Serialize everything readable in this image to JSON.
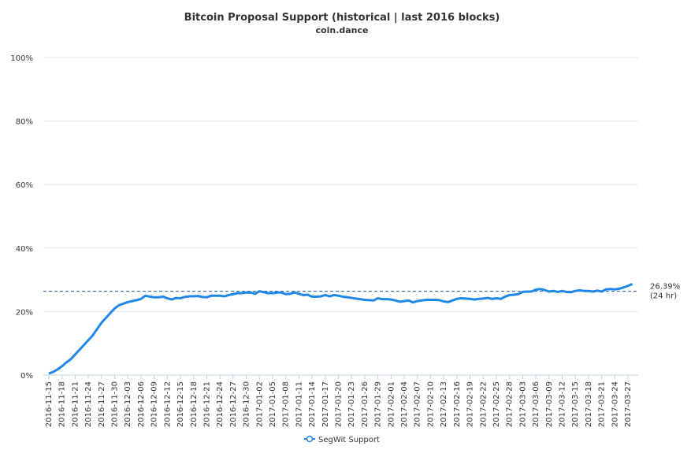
{
  "chart_data": {
    "type": "line",
    "title": "Bitcoin Proposal Support (historical | last 2016 blocks)",
    "subtitle": "coin.dance",
    "categories": [
      "2016-11-15",
      null,
      null,
      "2016-11-18",
      null,
      null,
      "2016-11-21",
      null,
      null,
      "2016-11-24",
      null,
      null,
      "2016-11-27",
      null,
      null,
      "2016-11-30",
      null,
      null,
      "2016-12-03",
      null,
      null,
      "2016-12-06",
      null,
      null,
      "2016-12-09",
      null,
      null,
      "2016-12-12",
      null,
      null,
      "2016-12-15",
      null,
      null,
      "2016-12-18",
      null,
      null,
      "2016-12-21",
      null,
      null,
      "2016-12-24",
      null,
      null,
      "2016-12-27",
      null,
      null,
      "2016-12-30",
      null,
      null,
      "2017-01-02",
      null,
      null,
      "2017-01-05",
      null,
      null,
      "2017-01-08",
      null,
      null,
      "2017-01-11",
      null,
      null,
      "2017-01-14",
      null,
      null,
      "2017-01-17",
      null,
      null,
      "2017-01-20",
      null,
      null,
      "2017-01-23",
      null,
      null,
      "2017-01-26",
      null,
      null,
      "2017-01-29",
      null,
      null,
      "2017-02-01",
      null,
      null,
      "2017-02-04",
      null,
      null,
      "2017-02-07",
      null,
      null,
      "2017-02-10",
      null,
      null,
      "2017-02-13",
      null,
      null,
      "2017-02-16",
      null,
      null,
      "2017-02-19",
      null,
      null,
      "2017-02-22",
      null,
      null,
      "2017-02-25",
      null,
      null,
      "2017-02-28",
      null,
      null,
      "2017-03-03",
      null,
      null,
      "2017-03-06",
      null,
      null,
      "2017-03-09",
      null,
      null,
      "2017-03-12",
      null,
      null,
      "2017-03-15",
      null,
      null,
      "2017-03-18",
      null,
      null,
      "2017-03-21",
      null,
      null,
      "2017-03-24",
      null,
      null,
      "2017-03-27",
      null
    ],
    "series": [
      {
        "name": "SegWit Support",
        "color": "#1f87e6",
        "values": [
          0.5,
          1,
          1.8,
          2.8,
          4,
          5,
          6.5,
          8,
          9.5,
          11,
          12.5,
          14.5,
          16.5,
          18,
          19.5,
          21,
          22,
          22.5,
          23,
          23.3,
          23.6,
          24,
          25,
          24.7,
          24.5,
          24.5,
          24.7,
          24.2,
          23.8,
          24.3,
          24.2,
          24.6,
          24.8,
          24.8,
          24.9,
          24.6,
          24.5,
          25,
          25,
          25,
          24.8,
          25.2,
          25.5,
          25.8,
          25.8,
          26,
          26,
          25.6,
          26.4,
          26.1,
          25.8,
          25.8,
          26,
          26,
          25.5,
          25.6,
          26,
          25.6,
          25.2,
          25.3,
          24.7,
          24.7,
          24.8,
          25.2,
          24.8,
          25.2,
          25,
          24.7,
          24.5,
          24.3,
          24.1,
          23.9,
          23.7,
          23.6,
          23.5,
          24.2,
          23.9,
          23.9,
          23.8,
          23.5,
          23.1,
          23.3,
          23.5,
          22.9,
          23.3,
          23.5,
          23.7,
          23.7,
          23.7,
          23.6,
          23.2,
          23,
          23.5,
          24,
          24.2,
          24.1,
          24,
          23.8,
          24,
          24.1,
          24.3,
          24,
          24.2,
          24,
          24.7,
          25.2,
          25.3,
          25.5,
          26.2,
          26.3,
          26.3,
          26.9,
          27.1,
          26.8,
          26.3,
          26.5,
          26.2,
          26.5,
          26.2,
          26.1,
          26.5,
          26.7,
          26.5,
          26.5,
          26.3,
          26.6,
          26.3,
          27,
          27.1,
          27,
          27.2,
          27.6,
          28.1,
          28.7
        ]
      }
    ],
    "ylim": [
      0,
      100
    ],
    "yticks": [
      {
        "value": 0,
        "label": "0%"
      },
      {
        "value": 20,
        "label": "20%"
      },
      {
        "value": 40,
        "label": "40%"
      },
      {
        "value": 60,
        "label": "60%"
      },
      {
        "value": 80,
        "label": "80%"
      },
      {
        "value": 100,
        "label": "100%"
      }
    ],
    "grid": true,
    "reference_line": {
      "value": 26.39,
      "label": "26.39%",
      "note": "(24 hr)"
    },
    "legend": "bottom"
  }
}
